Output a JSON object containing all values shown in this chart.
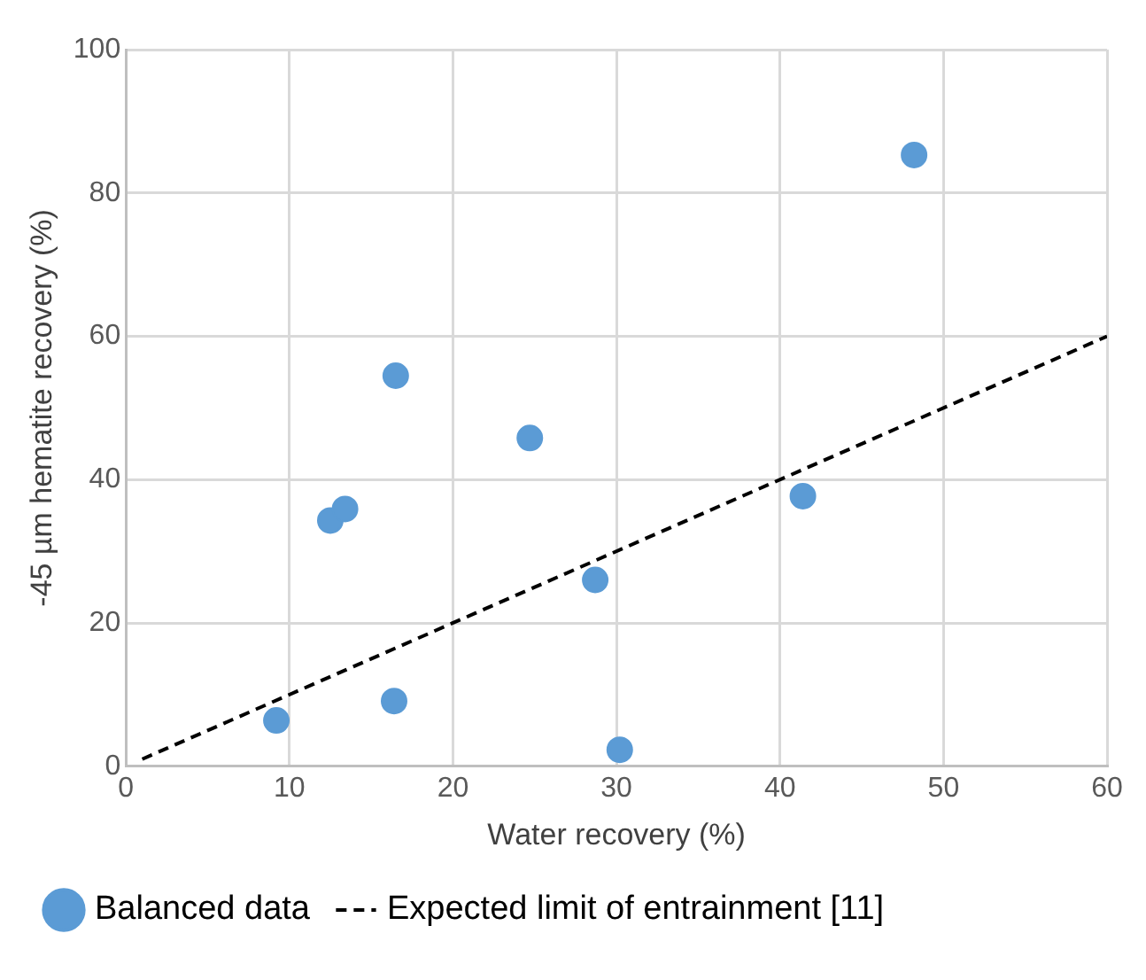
{
  "chart_data": {
    "type": "scatter",
    "xlabel": "Water recovery (%)",
    "ylabel": "-45 µm hematite recovery (%)",
    "xlim": [
      0,
      60
    ],
    "xticks": [
      0,
      10,
      20,
      30,
      40,
      50,
      60
    ],
    "ylim": [
      0,
      100
    ],
    "yticks": [
      0,
      20,
      40,
      60,
      80,
      100
    ],
    "grid": true,
    "legend": "bottom",
    "series": [
      {
        "name": "Balanced data",
        "color": "#5b9bd5",
        "marker": "circle",
        "x": [
          9.2,
          12.5,
          13.4,
          16.5,
          16.4,
          24.7,
          28.7,
          30.2,
          41.4,
          48.2
        ],
        "values": [
          6.4,
          34.3,
          35.9,
          54.5,
          9.1,
          45.8,
          26.0,
          2.3,
          37.7,
          85.3
        ]
      },
      {
        "name": "Expected limit of entrainment [11]",
        "type": "line",
        "color": "#000000",
        "marker": "none",
        "line_style": "dashed",
        "x": [
          1,
          60
        ],
        "values": [
          1,
          60
        ]
      }
    ]
  }
}
